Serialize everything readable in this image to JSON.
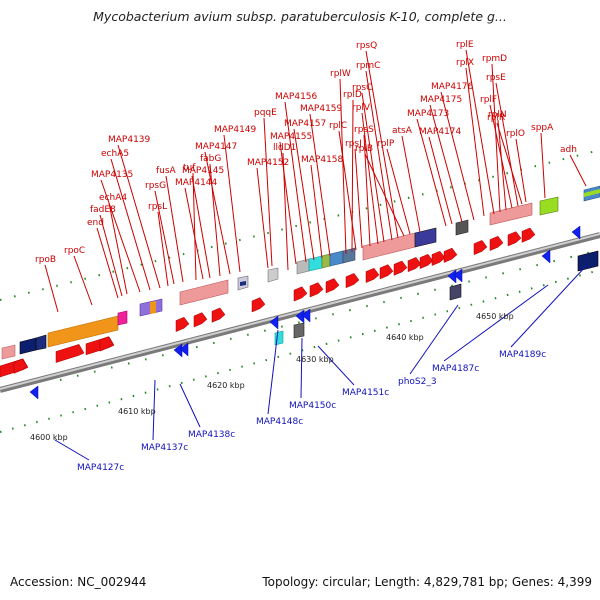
{
  "title": "Mycobacterium avium subsp. paratuberculosis K-10, complete g...",
  "accession": "Accession: NC_002944",
  "summary": "Topology: circular; Length: 4,829,781 bp; Genes: 4,399",
  "kbp_labels": [
    "4600 kbp",
    "4610 kbp",
    "4620 kbp",
    "4630 kbp",
    "4640 kbp",
    "4650 kbp"
  ],
  "forward_genes": [
    "rpoB",
    "rpoC",
    "end",
    "fadE8",
    "echA4",
    "MAP4135",
    "echA5",
    "MAP4139",
    "rpsL",
    "rpsG",
    "fusA",
    "tuf",
    "MAP4144",
    "MAP4145",
    "fabG",
    "MAP4147",
    "MAP4149",
    "lldD1",
    "MAP4152",
    "pqqE",
    "MAP4155",
    "MAP4156",
    "MAP4157",
    "MAP4158",
    "MAP4159",
    "rplD",
    "rplW",
    "rplC",
    "rpsJ",
    "rpsS",
    "rplV",
    "rpsC",
    "rpmC",
    "rpsQ",
    "rplB",
    "rplP",
    "atsA",
    "MAP4173",
    "MAP4174",
    "MAP4175",
    "MAP4176",
    "rplX",
    "rplE",
    "rpmD",
    "rplN",
    "rplF",
    "rpsE",
    "rplR",
    "rplO",
    "sppA",
    "adh"
  ],
  "reverse_genes": [
    "MAP4127c",
    "MAP4137c",
    "MAP4138c",
    "MAP4148c",
    "MAP4150c",
    "MAP4151c",
    "phoS2_3",
    "MAP4187c",
    "MAP4189c"
  ],
  "colors": {
    "forward": "#cc0000",
    "reverse": "#1111bb",
    "arrow_forward": "#ee1111",
    "arrow_reverse": "#1122ee",
    "tick": "#228822",
    "backbone": "#9a9a9a"
  }
}
